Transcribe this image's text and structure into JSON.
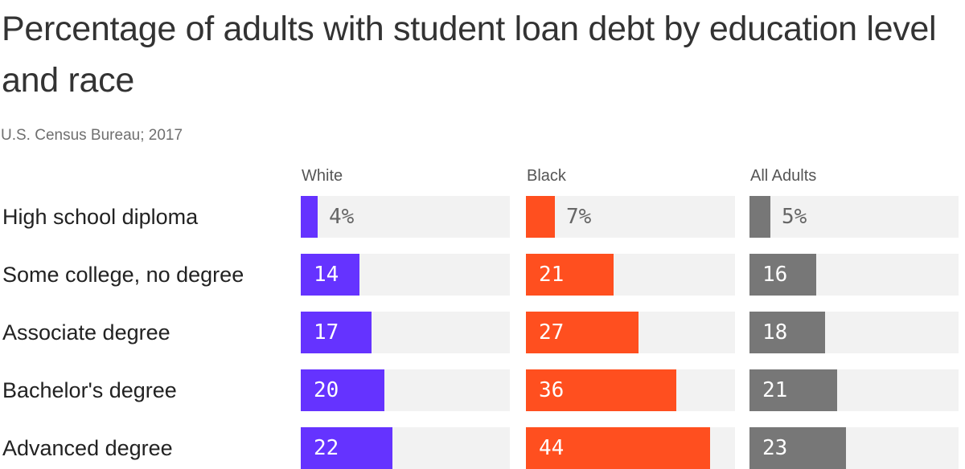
{
  "header": {
    "title": "Percentage of adults with student loan debt by education level and race",
    "source": "U.S. Census Bureau; 2017"
  },
  "colors": {
    "white": "#6533ff",
    "black": "#ff4f1f",
    "all_adults": "#777777",
    "track": "#f2f2f2"
  },
  "chart_data": {
    "type": "bar",
    "orientation": "horizontal",
    "layout": "small-multiples",
    "title": "Percentage of adults with student loan debt by education level and race",
    "subtitle": "U.S. Census Bureau; 2017",
    "categories": [
      "High school diploma",
      "Some college, no degree",
      "Associate degree",
      "Bachelor's degree",
      "Advanced degree"
    ],
    "series": [
      {
        "name": "White",
        "values": [
          4,
          14,
          17,
          20,
          22
        ],
        "labels": [
          "4%",
          "14",
          "17",
          "20",
          "22"
        ]
      },
      {
        "name": "Black",
        "values": [
          7,
          21,
          27,
          36,
          44
        ],
        "labels": [
          "7%",
          "21",
          "27",
          "36",
          "44"
        ]
      },
      {
        "name": "All Adults",
        "values": [
          5,
          16,
          18,
          21,
          23
        ],
        "labels": [
          "5%",
          "16",
          "18",
          "21",
          "23"
        ]
      }
    ],
    "xlim": [
      0,
      50
    ],
    "grid": false,
    "legend": "none"
  }
}
